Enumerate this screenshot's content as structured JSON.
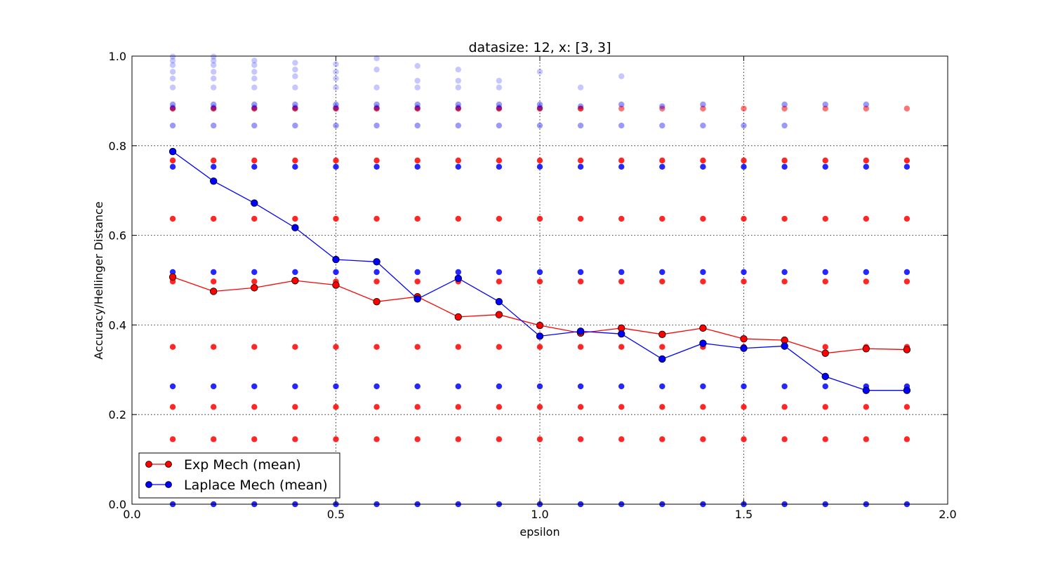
{
  "chart_data": {
    "type": "scatter",
    "title": "datasize: 12, x: [3, 3]",
    "xlabel": "epsilon",
    "ylabel": "Accuracy/Hellinger Distance",
    "xlim": [
      0.0,
      2.0
    ],
    "ylim": [
      0.0,
      1.0
    ],
    "xticks": [
      "0.0",
      "0.5",
      "1.0",
      "1.5",
      "2.0"
    ],
    "yticks": [
      "0.0",
      "0.2",
      "0.4",
      "0.6",
      "0.8",
      "1.0"
    ],
    "grid": true,
    "legend_position": "lower-left",
    "x": [
      0.1,
      0.2,
      0.3,
      0.4,
      0.5,
      0.6,
      0.7,
      0.8,
      0.9,
      1.0,
      1.1,
      1.2,
      1.3,
      1.4,
      1.5,
      1.6,
      1.7,
      1.8,
      1.9
    ],
    "series": [
      {
        "name": "Exp Mech (mean)",
        "color": "#ff0000",
        "values": [
          0.507,
          0.475,
          0.483,
          0.499,
          0.489,
          0.452,
          0.463,
          0.418,
          0.423,
          0.399,
          0.382,
          0.393,
          0.379,
          0.393,
          0.369,
          0.366,
          0.337,
          0.347,
          0.345
        ]
      },
      {
        "name": "Laplace Mech (mean)",
        "color": "#0000ff",
        "values": [
          0.787,
          0.721,
          0.672,
          0.617,
          0.546,
          0.541,
          0.458,
          0.504,
          0.452,
          0.375,
          0.386,
          0.38,
          0.324,
          0.359,
          0.348,
          0.353,
          0.285,
          0.254,
          0.254
        ]
      }
    ],
    "scatter_samples": [
      {
        "series": "Exp Mech",
        "color": "#ff0000",
        "levels": [
          0.883,
          0.767,
          0.637,
          0.497,
          0.351,
          0.217,
          0.145
        ],
        "present_at_x": {
          "0.883": [
            0.1,
            0.2,
            0.3,
            0.4,
            0.5,
            0.6,
            0.7,
            0.8,
            0.9,
            1.0,
            1.1,
            1.2,
            1.3,
            1.4,
            1.5,
            1.6,
            1.7,
            1.8,
            1.9
          ],
          "0.767": [
            0.1,
            0.2,
            0.3,
            0.4,
            0.5,
            0.6,
            0.7,
            0.8,
            0.9,
            1.0,
            1.1,
            1.2,
            1.3,
            1.4,
            1.5,
            1.6,
            1.7,
            1.8,
            1.9
          ],
          "0.637": [
            0.1,
            0.2,
            0.3,
            0.4,
            0.5,
            0.6,
            0.7,
            0.8,
            0.9,
            1.0,
            1.1,
            1.2,
            1.3,
            1.4,
            1.5,
            1.6,
            1.7,
            1.8,
            1.9
          ],
          "0.497": [
            0.1,
            0.2,
            0.3,
            0.4,
            0.5,
            0.6,
            0.7,
            0.8,
            0.9,
            1.0,
            1.1,
            1.2,
            1.3,
            1.4,
            1.5,
            1.6,
            1.7,
            1.8,
            1.9
          ],
          "0.351": [
            0.1,
            0.2,
            0.3,
            0.4,
            0.5,
            0.6,
            0.7,
            0.8,
            0.9,
            1.0,
            1.1,
            1.2,
            1.3,
            1.4,
            1.5,
            1.6,
            1.7,
            1.8,
            1.9
          ],
          "0.217": [
            0.1,
            0.2,
            0.3,
            0.4,
            0.5,
            0.6,
            0.7,
            0.8,
            0.9,
            1.0,
            1.1,
            1.2,
            1.3,
            1.4,
            1.5,
            1.6,
            1.7,
            1.8,
            1.9
          ],
          "0.145": [
            0.1,
            0.2,
            0.3,
            0.4,
            0.5,
            0.6,
            0.7,
            0.8,
            0.9,
            1.0,
            1.1,
            1.2,
            1.3,
            1.4,
            1.5,
            1.6,
            1.7,
            1.8,
            1.9
          ]
        }
      },
      {
        "series": "Laplace Mech",
        "color": "#0000ff",
        "levels": [
          0.753,
          0.518,
          0.263,
          0.0
        ],
        "present_at_x": {
          "0.753": [
            0.1,
            0.2,
            0.3,
            0.4,
            0.5,
            0.6,
            0.7,
            0.8,
            0.9,
            1.0,
            1.1,
            1.2,
            1.3,
            1.4,
            1.5,
            1.6,
            1.7,
            1.8,
            1.9
          ],
          "0.518": [
            0.1,
            0.2,
            0.3,
            0.4,
            0.5,
            0.6,
            0.7,
            0.8,
            0.9,
            1.0,
            1.1,
            1.2,
            1.3,
            1.4,
            1.5,
            1.6,
            1.7,
            1.8,
            1.9
          ],
          "0.263": [
            0.1,
            0.2,
            0.3,
            0.4,
            0.5,
            0.6,
            0.7,
            0.8,
            0.9,
            1.0,
            1.1,
            1.2,
            1.3,
            1.4,
            1.5,
            1.6,
            1.7,
            1.8,
            1.9
          ],
          "0.0": [
            0.1,
            0.2,
            0.3,
            0.4,
            0.5,
            0.6,
            0.7,
            0.8,
            0.9,
            1.0,
            1.1,
            1.2,
            1.3,
            1.4,
            1.5,
            1.6,
            1.7,
            1.8,
            1.9
          ]
        },
        "upper_scatter": [
          {
            "x": 0.1,
            "y": [
              0.999,
              0.99,
              0.98,
              0.965,
              0.95,
              0.93,
              0.892,
              0.885,
              0.845
            ]
          },
          {
            "x": 0.2,
            "y": [
              0.999,
              0.99,
              0.98,
              0.965,
              0.95,
              0.93,
              0.892,
              0.885,
              0.845
            ]
          },
          {
            "x": 0.3,
            "y": [
              0.99,
              0.98,
              0.965,
              0.95,
              0.93,
              0.892,
              0.885,
              0.845
            ]
          },
          {
            "x": 0.4,
            "y": [
              0.985,
              0.97,
              0.955,
              0.93,
              0.892,
              0.885,
              0.845
            ]
          },
          {
            "x": 0.5,
            "y": [
              0.982,
              0.965,
              0.95,
              0.93,
              0.892,
              0.885,
              0.845
            ]
          },
          {
            "x": 0.6,
            "y": [
              0.995,
              0.97,
              0.93,
              0.892,
              0.885,
              0.845
            ]
          },
          {
            "x": 0.7,
            "y": [
              0.978,
              0.945,
              0.93,
              0.892,
              0.885,
              0.845
            ]
          },
          {
            "x": 0.8,
            "y": [
              0.97,
              0.945,
              0.93,
              0.892,
              0.885,
              0.845
            ]
          },
          {
            "x": 0.9,
            "y": [
              0.945,
              0.93,
              0.892,
              0.885,
              0.845
            ]
          },
          {
            "x": 1.0,
            "y": [
              0.965,
              0.892,
              0.885,
              0.845
            ]
          },
          {
            "x": 1.1,
            "y": [
              0.93,
              0.888,
              0.845
            ]
          },
          {
            "x": 1.2,
            "y": [
              0.955,
              0.892,
              0.845
            ]
          },
          {
            "x": 1.3,
            "y": [
              0.888,
              0.845
            ]
          },
          {
            "x": 1.4,
            "y": [
              0.892,
              0.845
            ]
          },
          {
            "x": 1.5,
            "y": [
              0.845
            ]
          },
          {
            "x": 1.6,
            "y": [
              0.892,
              0.845
            ]
          },
          {
            "x": 1.7,
            "y": [
              0.892
            ]
          },
          {
            "x": 1.8,
            "y": [
              0.892
            ]
          }
        ]
      }
    ]
  }
}
